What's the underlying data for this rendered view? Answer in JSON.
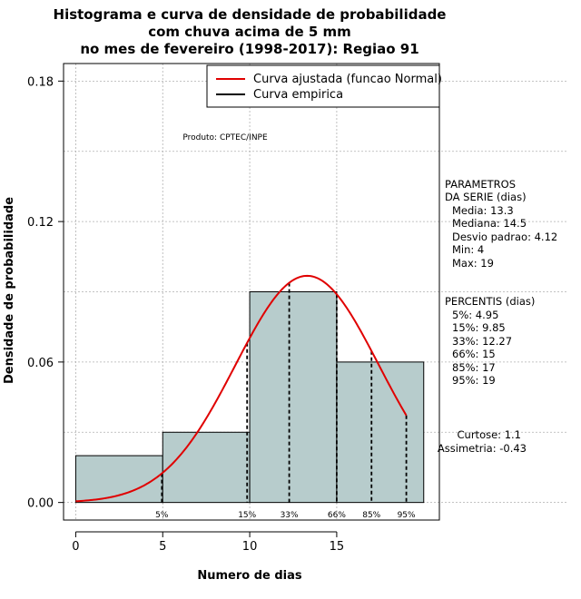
{
  "chart_data": {
    "type": "bar",
    "title_lines": [
      "Histograma e curva de densidade de probabilidade",
      "com chuva acima de 5 mm",
      "no mes de fevereiro (1998-2017): Regiao 91"
    ],
    "xlabel": "Numero de dias",
    "ylabel": "Densidade de probabilidade",
    "xlim": [
      -0.7,
      20.9
    ],
    "ylim": [
      -0.0075,
      0.1875
    ],
    "x_ticks": [
      0,
      5,
      10,
      15
    ],
    "y_ticks": [
      0.0,
      0.06,
      0.12,
      0.18
    ],
    "y_tick_labels": [
      "0.00",
      "0.06",
      "0.12",
      "0.18"
    ],
    "grid": true,
    "bins": [
      {
        "start": 0,
        "end": 5,
        "density": 0.02
      },
      {
        "start": 5,
        "end": 10,
        "density": 0.03
      },
      {
        "start": 10,
        "end": 15,
        "density": 0.09
      },
      {
        "start": 15,
        "end": 20,
        "density": 0.06
      }
    ],
    "normal_fit": {
      "mean": 13.3,
      "sd": 4.12,
      "x_range": [
        0,
        19
      ]
    },
    "percentiles": [
      {
        "label": "5%",
        "x": 4.95
      },
      {
        "label": "15%",
        "x": 9.85
      },
      {
        "label": "33%",
        "x": 12.27
      },
      {
        "label": "66%",
        "x": 15
      },
      {
        "label": "85%",
        "x": 17
      },
      {
        "label": "95%",
        "x": 19
      }
    ],
    "legend": {
      "position": "top-right",
      "entries": [
        {
          "label": "Curva ajustada (funcao Normal)",
          "color": "#e00000"
        },
        {
          "label": "Curva empirica",
          "color": "#000000"
        }
      ]
    },
    "product_note": "Produto: CPTEC/INPE",
    "parameters": {
      "title_lines": [
        "PARAMETROS",
        "DA SERIE (dias)"
      ],
      "lines": [
        "Media: 13.3",
        "Mediana: 14.5",
        "Desvio padrao: 4.12",
        "Min: 4",
        "Max: 19"
      ]
    },
    "percentis_block": {
      "title": "PERCENTIS (dias)",
      "lines": [
        "5%: 4.95",
        "15%: 9.85",
        "33%: 12.27",
        "66%: 15",
        "85%: 17",
        "95%: 19"
      ]
    },
    "shape": {
      "lines": [
        "Curtose: 1.1",
        "Assimetria: -0.43"
      ]
    },
    "colors": {
      "bar_fill": "#b7cccc",
      "curve": "#e00000",
      "grid": "#b0b0b0"
    }
  }
}
